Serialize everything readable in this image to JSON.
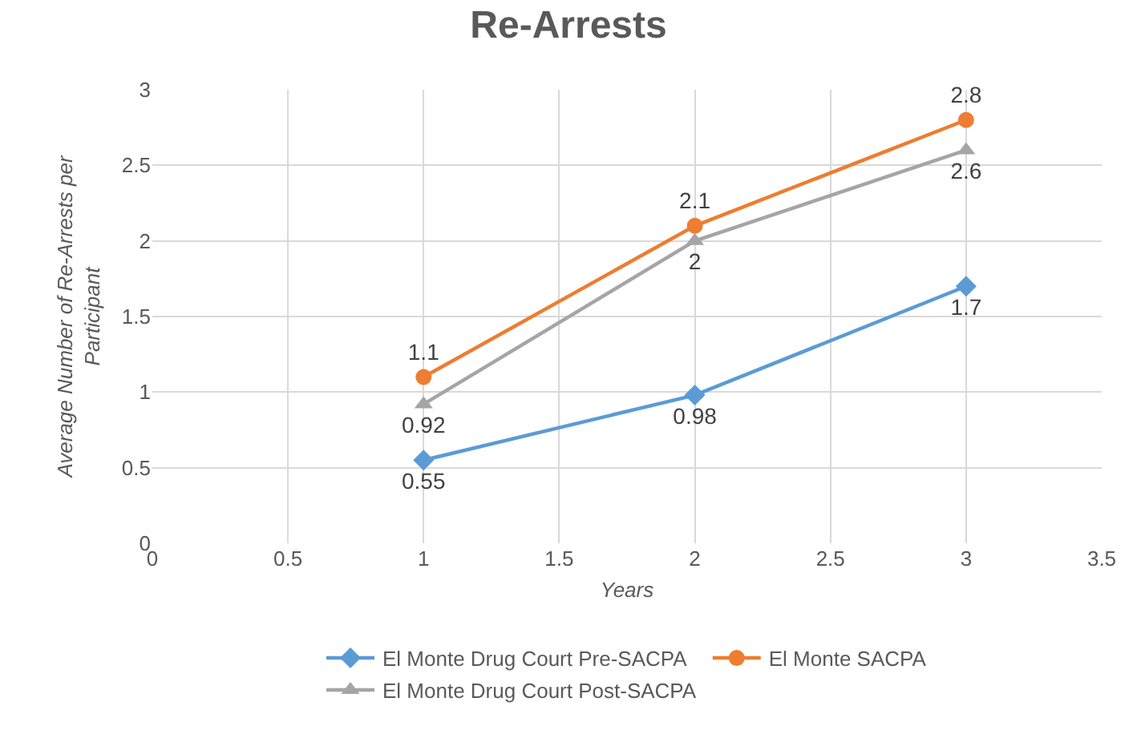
{
  "chart_data": {
    "type": "line",
    "title": "Re-Arrests",
    "xlabel": "Years",
    "ylabel": "Average Number of Re-Arrests per Participant",
    "x": [
      1,
      2,
      3
    ],
    "series": [
      {
        "name": "El Monte Drug Court Pre-SACPA",
        "color": "#5b9bd5",
        "marker": "diamond",
        "values": [
          0.55,
          0.98,
          1.7
        ]
      },
      {
        "name": "El Monte SACPA",
        "color": "#ed7d31",
        "marker": "circle",
        "values": [
          1.1,
          2.1,
          2.8
        ]
      },
      {
        "name": "El Monte Drug Court Post-SACPA",
        "color": "#a5a5a5",
        "marker": "triangle",
        "values": [
          0.92,
          2,
          2.6
        ]
      }
    ],
    "xlim": [
      0,
      3.5
    ],
    "xticks": [
      0,
      0.5,
      1,
      1.5,
      2,
      2.5,
      3,
      3.5
    ],
    "ylim": [
      0,
      3
    ],
    "yticks": [
      0,
      0.5,
      1,
      1.5,
      2,
      2.5,
      3
    ],
    "grid": true,
    "legend": "bottom",
    "data_labels": true,
    "line_style": "solid"
  }
}
